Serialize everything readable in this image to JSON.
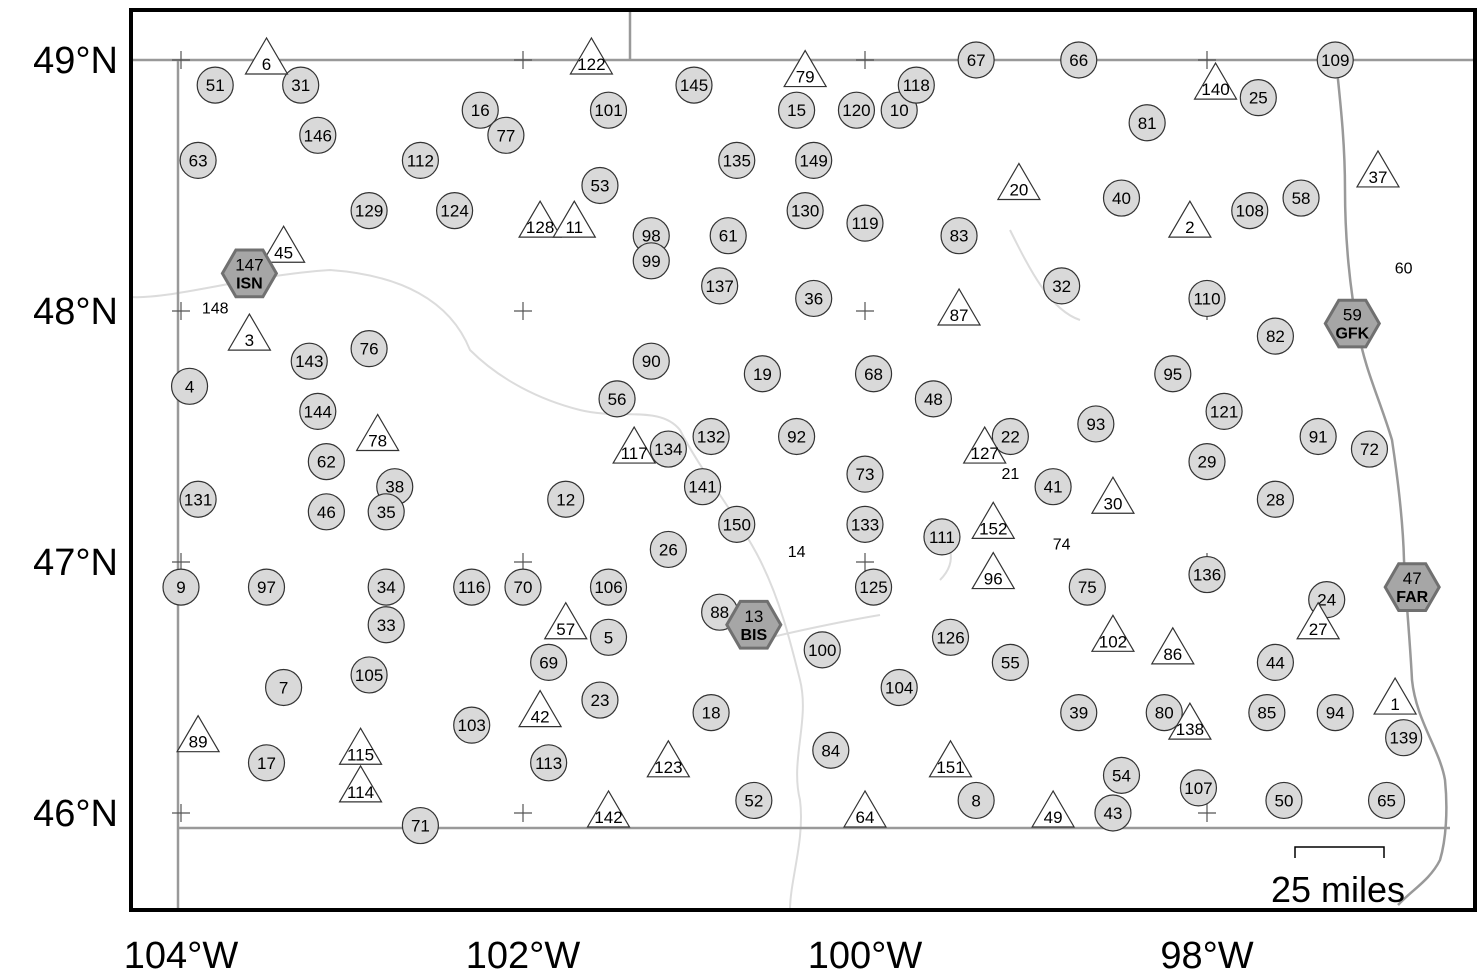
{
  "map": {
    "lon_labels": [
      {
        "lon": -104,
        "label": "104°W"
      },
      {
        "lon": -102,
        "label": "102°W"
      },
      {
        "lon": -100,
        "label": "100°W"
      },
      {
        "lon": -98,
        "label": "98°W"
      }
    ],
    "lat_labels": [
      {
        "lat": 49,
        "label": "49°N"
      },
      {
        "lat": 48,
        "label": "48°N"
      },
      {
        "lat": 47,
        "label": "47°N"
      },
      {
        "lat": 46,
        "label": "46°N"
      }
    ],
    "scale_bar": {
      "label": "25 miles"
    },
    "colors": {
      "circle_fill": "#d9d9d9",
      "hexagon_fill": "#a6a6a6",
      "hexagon_stroke": "#707070",
      "border": "#999999",
      "river": "#dcdcdc"
    }
  },
  "circle_sites": [
    {
      "id": "51",
      "lon": -103.8,
      "lat": 48.9
    },
    {
      "id": "31",
      "lon": -103.3,
      "lat": 48.9
    },
    {
      "id": "63",
      "lon": -103.9,
      "lat": 48.6
    },
    {
      "id": "146",
      "lon": -103.2,
      "lat": 48.7
    },
    {
      "id": "112",
      "lon": -102.6,
      "lat": 48.6
    },
    {
      "id": "129",
      "lon": -102.9,
      "lat": 48.4
    },
    {
      "id": "16",
      "lon": -102.25,
      "lat": 48.8
    },
    {
      "id": "77",
      "lon": -102.1,
      "lat": 48.7
    },
    {
      "id": "124",
      "lon": -102.4,
      "lat": 48.4
    },
    {
      "id": "101",
      "lon": -101.5,
      "lat": 48.8
    },
    {
      "id": "145",
      "lon": -101.0,
      "lat": 48.9
    },
    {
      "id": "53",
      "lon": -101.55,
      "lat": 48.5
    },
    {
      "id": "98",
      "lon": -101.25,
      "lat": 48.3
    },
    {
      "id": "99",
      "lon": -101.25,
      "lat": 48.2
    },
    {
      "id": "135",
      "lon": -100.75,
      "lat": 48.6
    },
    {
      "id": "61",
      "lon": -100.8,
      "lat": 48.3
    },
    {
      "id": "137",
      "lon": -100.85,
      "lat": 48.1
    },
    {
      "id": "15",
      "lon": -100.4,
      "lat": 48.8
    },
    {
      "id": "149",
      "lon": -100.3,
      "lat": 48.6
    },
    {
      "id": "120",
      "lon": -100.05,
      "lat": 48.8
    },
    {
      "id": "10",
      "lon": -99.8,
      "lat": 48.8
    },
    {
      "id": "118",
      "lon": -99.7,
      "lat": 48.9
    },
    {
      "id": "67",
      "lon": -99.35,
      "lat": 49.0
    },
    {
      "id": "66",
      "lon": -98.75,
      "lat": 49.0
    },
    {
      "id": "130",
      "lon": -100.35,
      "lat": 48.4
    },
    {
      "id": "119",
      "lon": -100.0,
      "lat": 48.35
    },
    {
      "id": "36",
      "lon": -100.3,
      "lat": 48.05
    },
    {
      "id": "83",
      "lon": -99.45,
      "lat": 48.3
    },
    {
      "id": "32",
      "lon": -98.85,
      "lat": 48.1
    },
    {
      "id": "40",
      "lon": -98.5,
      "lat": 48.45
    },
    {
      "id": "81",
      "lon": -98.35,
      "lat": 48.75
    },
    {
      "id": "25",
      "lon": -97.7,
      "lat": 48.85
    },
    {
      "id": "109",
      "lon": -97.25,
      "lat": 49.0
    },
    {
      "id": "108",
      "lon": -97.75,
      "lat": 48.4
    },
    {
      "id": "58",
      "lon": -97.45,
      "lat": 48.45
    },
    {
      "id": "110",
      "lon": -98.0,
      "lat": 48.05
    },
    {
      "id": "82",
      "lon": -97.6,
      "lat": 47.9
    },
    {
      "id": "95",
      "lon": -98.2,
      "lat": 47.75
    },
    {
      "id": "121",
      "lon": -97.9,
      "lat": 47.6
    },
    {
      "id": "93",
      "lon": -98.65,
      "lat": 47.55
    },
    {
      "id": "91",
      "lon": -97.35,
      "lat": 47.5
    },
    {
      "id": "72",
      "lon": -97.05,
      "lat": 47.45
    },
    {
      "id": "29",
      "lon": -98.0,
      "lat": 47.4
    },
    {
      "id": "28",
      "lon": -97.6,
      "lat": 47.25
    },
    {
      "id": "41",
      "lon": -98.9,
      "lat": 47.3
    },
    {
      "id": "22",
      "lon": -99.15,
      "lat": 47.5
    },
    {
      "id": "4",
      "lon": -103.95,
      "lat": 47.7
    },
    {
      "id": "143",
      "lon": -103.25,
      "lat": 47.8
    },
    {
      "id": "76",
      "lon": -102.9,
      "lat": 47.85
    },
    {
      "id": "144",
      "lon": -103.2,
      "lat": 47.6
    },
    {
      "id": "62",
      "lon": -103.15,
      "lat": 47.4
    },
    {
      "id": "38",
      "lon": -102.75,
      "lat": 47.3
    },
    {
      "id": "131",
      "lon": -103.9,
      "lat": 47.25
    },
    {
      "id": "46",
      "lon": -103.15,
      "lat": 47.2
    },
    {
      "id": "35",
      "lon": -102.8,
      "lat": 47.2
    },
    {
      "id": "9",
      "lon": -104.0,
      "lat": 46.9
    },
    {
      "id": "97",
      "lon": -103.5,
      "lat": 46.9
    },
    {
      "id": "34",
      "lon": -102.8,
      "lat": 46.9
    },
    {
      "id": "33",
      "lon": -102.8,
      "lat": 46.75
    },
    {
      "id": "116",
      "lon": -102.3,
      "lat": 46.9
    },
    {
      "id": "70",
      "lon": -102.0,
      "lat": 46.9
    },
    {
      "id": "106",
      "lon": -101.5,
      "lat": 46.9
    },
    {
      "id": "5",
      "lon": -101.5,
      "lat": 46.7
    },
    {
      "id": "90",
      "lon": -101.25,
      "lat": 47.8
    },
    {
      "id": "56",
      "lon": -101.45,
      "lat": 47.65
    },
    {
      "id": "19",
      "lon": -100.6,
      "lat": 47.75
    },
    {
      "id": "68",
      "lon": -99.95,
      "lat": 47.75
    },
    {
      "id": "48",
      "lon": -99.6,
      "lat": 47.65
    },
    {
      "id": "134",
      "lon": -101.15,
      "lat": 47.45
    },
    {
      "id": "132",
      "lon": -100.9,
      "lat": 47.5
    },
    {
      "id": "92",
      "lon": -100.4,
      "lat": 47.5
    },
    {
      "id": "73",
      "lon": -100.0,
      "lat": 47.35
    },
    {
      "id": "12",
      "lon": -101.75,
      "lat": 47.25
    },
    {
      "id": "141",
      "lon": -100.95,
      "lat": 47.3
    },
    {
      "id": "150",
      "lon": -100.75,
      "lat": 47.15
    },
    {
      "id": "26",
      "lon": -101.15,
      "lat": 47.05
    },
    {
      "id": "133",
      "lon": -100.0,
      "lat": 47.15
    },
    {
      "id": "111",
      "lon": -99.55,
      "lat": 47.1
    },
    {
      "id": "75",
      "lon": -98.7,
      "lat": 46.9
    },
    {
      "id": "136",
      "lon": -98.0,
      "lat": 46.95
    },
    {
      "id": "24",
      "lon": -97.3,
      "lat": 46.85
    },
    {
      "id": "88",
      "lon": -100.85,
      "lat": 46.8
    },
    {
      "id": "125",
      "lon": -99.95,
      "lat": 46.9
    },
    {
      "id": "100",
      "lon": -100.25,
      "lat": 46.65
    },
    {
      "id": "126",
      "lon": -99.5,
      "lat": 46.7
    },
    {
      "id": "55",
      "lon": -99.15,
      "lat": 46.6
    },
    {
      "id": "44",
      "lon": -97.6,
      "lat": 46.6
    },
    {
      "id": "69",
      "lon": -101.85,
      "lat": 46.6
    },
    {
      "id": "7",
      "lon": -103.4,
      "lat": 46.5
    },
    {
      "id": "105",
      "lon": -102.9,
      "lat": 46.55
    },
    {
      "id": "103",
      "lon": -102.3,
      "lat": 46.35
    },
    {
      "id": "23",
      "lon": -101.55,
      "lat": 46.45
    },
    {
      "id": "18",
      "lon": -100.9,
      "lat": 46.4
    },
    {
      "id": "104",
      "lon": -99.8,
      "lat": 46.5
    },
    {
      "id": "39",
      "lon": -98.75,
      "lat": 46.4
    },
    {
      "id": "80",
      "lon": -98.25,
      "lat": 46.4
    },
    {
      "id": "85",
      "lon": -97.65,
      "lat": 46.4
    },
    {
      "id": "94",
      "lon": -97.25,
      "lat": 46.4
    },
    {
      "id": "139",
      "lon": -96.85,
      "lat": 46.3
    },
    {
      "id": "17",
      "lon": -103.5,
      "lat": 46.2
    },
    {
      "id": "113",
      "lon": -101.85,
      "lat": 46.2
    },
    {
      "id": "84",
      "lon": -100.2,
      "lat": 46.25
    },
    {
      "id": "54",
      "lon": -98.5,
      "lat": 46.15
    },
    {
      "id": "107",
      "lon": -98.05,
      "lat": 46.1
    },
    {
      "id": "65",
      "lon": -96.95,
      "lat": 46.05
    },
    {
      "id": "52",
      "lon": -100.65,
      "lat": 46.05
    },
    {
      "id": "8",
      "lon": -99.35,
      "lat": 46.05
    },
    {
      "id": "43",
      "lon": -98.55,
      "lat": 46.0
    },
    {
      "id": "50",
      "lon": -97.55,
      "lat": 46.05
    },
    {
      "id": "71",
      "lon": -102.6,
      "lat": 45.95
    }
  ],
  "triangle_sites": [
    {
      "id": "6",
      "lon": -103.5,
      "lat": 49.0
    },
    {
      "id": "122",
      "lon": -101.6,
      "lat": 49.0
    },
    {
      "id": "79",
      "lon": -100.35,
      "lat": 48.95
    },
    {
      "id": "140",
      "lon": -97.95,
      "lat": 48.9
    },
    {
      "id": "37",
      "lon": -97.0,
      "lat": 48.55
    },
    {
      "id": "20",
      "lon": -99.1,
      "lat": 48.5
    },
    {
      "id": "2",
      "lon": -98.1,
      "lat": 48.35
    },
    {
      "id": "45",
      "lon": -103.4,
      "lat": 48.25
    },
    {
      "id": "128",
      "lon": -101.9,
      "lat": 48.35
    },
    {
      "id": "11",
      "lon": -101.7,
      "lat": 48.35
    },
    {
      "id": "3",
      "lon": -103.6,
      "lat": 47.9
    },
    {
      "id": "87",
      "lon": -99.45,
      "lat": 48.0
    },
    {
      "id": "78",
      "lon": -102.85,
      "lat": 47.5
    },
    {
      "id": "117",
      "lon": -101.35,
      "lat": 47.45
    },
    {
      "id": "127",
      "lon": -99.3,
      "lat": 47.45
    },
    {
      "id": "152",
      "lon": -99.25,
      "lat": 47.15
    },
    {
      "id": "30",
      "lon": -98.55,
      "lat": 47.25
    },
    {
      "id": "57",
      "lon": -101.75,
      "lat": 46.75
    },
    {
      "id": "96",
      "lon": -99.25,
      "lat": 46.95
    },
    {
      "id": "27",
      "lon": -97.35,
      "lat": 46.75
    },
    {
      "id": "102",
      "lon": -98.55,
      "lat": 46.7
    },
    {
      "id": "86",
      "lon": -98.2,
      "lat": 46.65
    },
    {
      "id": "1",
      "lon": -96.9,
      "lat": 46.45
    },
    {
      "id": "42",
      "lon": -101.9,
      "lat": 46.4
    },
    {
      "id": "89",
      "lon": -103.9,
      "lat": 46.3
    },
    {
      "id": "115",
      "lon": -102.95,
      "lat": 46.25
    },
    {
      "id": "138",
      "lon": -98.1,
      "lat": 46.35
    },
    {
      "id": "123",
      "lon": -101.15,
      "lat": 46.2
    },
    {
      "id": "151",
      "lon": -99.5,
      "lat": 46.2
    },
    {
      "id": "114",
      "lon": -102.95,
      "lat": 46.1
    },
    {
      "id": "142",
      "lon": -101.5,
      "lat": 46.0
    },
    {
      "id": "64",
      "lon": -100.0,
      "lat": 46.0
    },
    {
      "id": "49",
      "lon": -98.9,
      "lat": 46.0
    }
  ],
  "hexagon_sites": [
    {
      "id": "147",
      "name": "ISN",
      "lon": -103.6,
      "lat": 48.15
    },
    {
      "id": "59",
      "name": "GFK",
      "lon": -97.15,
      "lat": 47.95
    },
    {
      "id": "13",
      "name": "BIS",
      "lon": -100.65,
      "lat": 46.75
    },
    {
      "id": "47",
      "name": "FAR",
      "lon": -96.8,
      "lat": 46.9
    }
  ],
  "callout_labels": [
    {
      "id": "148",
      "lon": -103.8,
      "lat": 47.99
    },
    {
      "id": "60",
      "lon": -96.85,
      "lat": 48.15
    },
    {
      "id": "21",
      "lon": -99.15,
      "lat": 47.33
    },
    {
      "id": "74",
      "lon": -98.85,
      "lat": 47.05
    },
    {
      "id": "14",
      "lon": -100.4,
      "lat": 47.02
    }
  ]
}
